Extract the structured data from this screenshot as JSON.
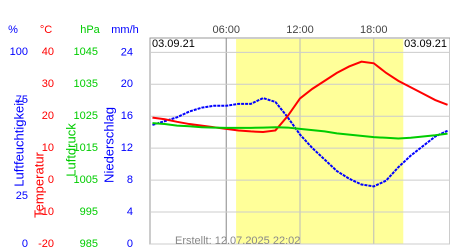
{
  "chart_data": {
    "type": "line",
    "date_left": "03.09.21",
    "date_right": "03.09.21",
    "footer": "Erstellt: 12.07.2025 22:02",
    "xlim": [
      -0.2,
      24.2
    ],
    "xticks": [
      {
        "value": 6,
        "label": "06:00"
      },
      {
        "value": 12,
        "label": "12:00"
      },
      {
        "value": 18,
        "label": "18:00"
      }
    ],
    "daylight": [
      6.8,
      20.4
    ],
    "x": [
      0,
      1,
      2,
      3,
      4,
      5,
      6,
      7,
      8,
      9,
      10,
      11,
      12,
      13,
      14,
      15,
      16,
      17,
      18,
      19,
      20,
      21,
      22,
      23,
      24
    ],
    "series": [
      {
        "name": "Luftfeuchtigkeit",
        "unit": "%",
        "color": "#0000ff",
        "ylim": [
          0,
          107.3
        ],
        "yticks": [
          100,
          75,
          25,
          0
        ],
        "values": [
          62,
          64,
          66,
          69,
          71,
          72,
          72,
          73,
          73,
          76,
          74,
          66,
          57,
          50,
          44,
          38,
          34,
          31,
          30,
          33,
          40,
          46,
          51,
          56,
          59
        ]
      },
      {
        "name": "Temperatur",
        "unit": "°C",
        "color": "#ff0000",
        "ylim": [
          -20,
          44.4
        ],
        "yticks": [
          40,
          30,
          20,
          10,
          0,
          -10,
          -20
        ],
        "values": [
          19.5,
          19,
          18.2,
          17.5,
          17,
          16.5,
          16,
          15.5,
          15.2,
          15,
          15.5,
          20,
          25.5,
          28.5,
          31,
          33.5,
          35.5,
          37,
          36.5,
          33.5,
          31,
          29,
          27,
          25,
          23.5
        ]
      },
      {
        "name": "Luftdruck",
        "unit": "hPa",
        "color": "#00cc00",
        "ylim": [
          985,
          1049.4
        ],
        "yticks": [
          1045,
          1035,
          1025,
          1015,
          1005,
          995,
          985
        ],
        "values": [
          1022.8,
          1022.5,
          1022,
          1021.8,
          1021.5,
          1021.4,
          1021.3,
          1021.3,
          1021.3,
          1021.4,
          1021.5,
          1021.4,
          1021,
          1020.6,
          1020.2,
          1019.6,
          1019.2,
          1018.8,
          1018.4,
          1018.2,
          1018,
          1018.2,
          1018.6,
          1019,
          1019.5
        ]
      },
      {
        "name": "Niederschlag",
        "unit": "mm/h",
        "color": "#0000ff",
        "ylim": [
          0,
          25.8
        ],
        "yticks": [
          24,
          20,
          16,
          12,
          8,
          4,
          0
        ],
        "grid": true
      }
    ]
  }
}
